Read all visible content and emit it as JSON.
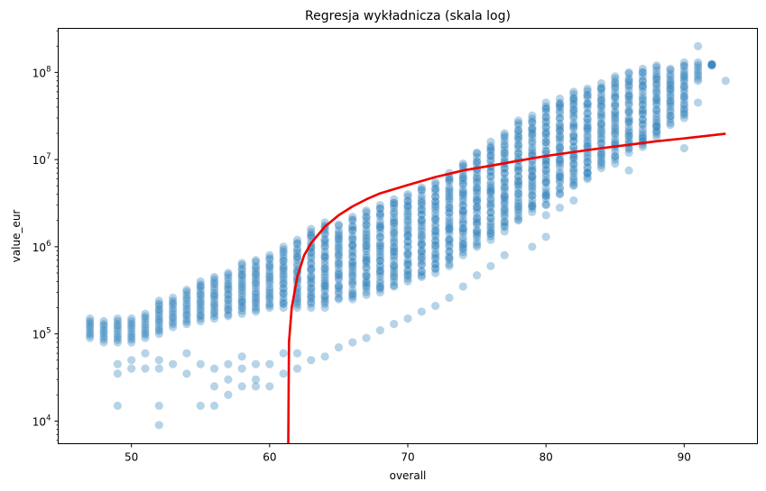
{
  "chart_data": {
    "type": "scatter",
    "title": "Regresja wykładnicza (skala log)",
    "xlabel": "overall",
    "ylabel": "value_eur",
    "x_range": [
      44.7,
      95.3
    ],
    "y_range": [
      5500,
      320000000
    ],
    "y_scale": "log",
    "grid": false,
    "x_ticks": [
      50,
      60,
      70,
      80,
      90
    ],
    "x_tick_labels": [
      "50",
      "60",
      "70",
      "80",
      "90"
    ],
    "y_ticks": [
      10000,
      100000,
      1000000,
      10000000,
      100000000
    ],
    "y_tick_labels": [
      {
        "base": "10",
        "exp": "4"
      },
      {
        "base": "10",
        "exp": "5"
      },
      {
        "base": "10",
        "exp": "6"
      },
      {
        "base": "10",
        "exp": "7"
      },
      {
        "base": "10",
        "exp": "8"
      }
    ],
    "colors": {
      "scatter": "#1f77b4",
      "fit": "#ee0000",
      "axis": "#000000"
    },
    "scatter_ranges": [
      [
        47,
        90000,
        150000
      ],
      [
        48,
        80000,
        140000
      ],
      [
        49,
        80000,
        150000
      ],
      [
        50,
        80000,
        150000
      ],
      [
        51,
        90000,
        170000
      ],
      [
        52,
        100000,
        240000
      ],
      [
        53,
        120000,
        260000
      ],
      [
        54,
        130000,
        320000
      ],
      [
        55,
        140000,
        400000
      ],
      [
        56,
        150000,
        450000
      ],
      [
        57,
        160000,
        500000
      ],
      [
        58,
        170000,
        650000
      ],
      [
        59,
        180000,
        700000
      ],
      [
        60,
        200000,
        800000
      ],
      [
        61,
        200000,
        1000000
      ],
      [
        62,
        200000,
        1200000
      ],
      [
        63,
        200000,
        1600000
      ],
      [
        64,
        200000,
        1900000
      ],
      [
        65,
        250000,
        1800000
      ],
      [
        66,
        250000,
        2200000
      ],
      [
        67,
        280000,
        2600000
      ],
      [
        68,
        300000,
        3000000
      ],
      [
        69,
        350000,
        3500000
      ],
      [
        70,
        400000,
        4000000
      ],
      [
        71,
        450000,
        4800000
      ],
      [
        72,
        500000,
        5500000
      ],
      [
        73,
        600000,
        7000000
      ],
      [
        74,
        800000,
        9000000
      ],
      [
        75,
        1000000,
        12000000
      ],
      [
        76,
        1200000,
        16000000
      ],
      [
        77,
        1500000,
        20000000
      ],
      [
        78,
        2000000,
        28000000
      ],
      [
        79,
        2500000,
        32000000
      ],
      [
        80,
        3000000,
        45000000
      ],
      [
        81,
        4000000,
        50000000
      ],
      [
        82,
        5000000,
        60000000
      ],
      [
        83,
        6000000,
        65000000
      ],
      [
        84,
        8000000,
        75000000
      ],
      [
        85,
        10000000,
        90000000
      ],
      [
        86,
        12000000,
        100000000
      ],
      [
        87,
        14000000,
        110000000
      ],
      [
        88,
        18000000,
        120000000
      ],
      [
        89,
        25000000,
        110000000
      ],
      [
        90,
        30000000,
        130000000
      ],
      [
        91,
        80000000,
        130000000
      ],
      [
        92,
        120000000,
        125000000
      ]
    ],
    "scatter_extra_points": [
      [
        49,
        15000
      ],
      [
        49,
        35000
      ],
      [
        49,
        45000
      ],
      [
        50,
        40000
      ],
      [
        50,
        50000
      ],
      [
        51,
        40000
      ],
      [
        51,
        60000
      ],
      [
        52,
        9000
      ],
      [
        52,
        15000
      ],
      [
        52,
        40000
      ],
      [
        52,
        50000
      ],
      [
        53,
        45000
      ],
      [
        54,
        35000
      ],
      [
        54,
        60000
      ],
      [
        55,
        15000
      ],
      [
        55,
        45000
      ],
      [
        56,
        15000
      ],
      [
        56,
        25000
      ],
      [
        56,
        40000
      ],
      [
        57,
        20000
      ],
      [
        57,
        30000
      ],
      [
        57,
        45000
      ],
      [
        58,
        25000
      ],
      [
        58,
        40000
      ],
      [
        58,
        55000
      ],
      [
        59,
        25000
      ],
      [
        59,
        30000
      ],
      [
        59,
        45000
      ],
      [
        60,
        25000
      ],
      [
        60,
        45000
      ],
      [
        61,
        35000
      ],
      [
        61,
        60000
      ],
      [
        62,
        40000
      ],
      [
        62,
        60000
      ],
      [
        63,
        50000
      ],
      [
        64,
        55000
      ],
      [
        65,
        70000
      ],
      [
        66,
        80000
      ],
      [
        67,
        90000
      ],
      [
        68,
        110000
      ],
      [
        69,
        130000
      ],
      [
        70,
        150000
      ],
      [
        71,
        180000
      ],
      [
        72,
        210000
      ],
      [
        73,
        260000
      ],
      [
        74,
        350000
      ],
      [
        75,
        470000
      ],
      [
        76,
        600000
      ],
      [
        77,
        800000
      ],
      [
        79,
        1000000
      ],
      [
        80,
        1300000
      ],
      [
        80,
        2300000
      ],
      [
        81,
        2800000
      ],
      [
        82,
        3400000
      ],
      [
        83,
        7000000
      ],
      [
        85,
        9000000
      ],
      [
        86,
        7500000
      ],
      [
        87,
        16000000
      ],
      [
        88,
        24000000
      ],
      [
        89,
        65000000
      ],
      [
        90,
        13500000
      ],
      [
        91,
        45000000
      ],
      [
        91,
        200000000
      ],
      [
        93,
        80000000
      ]
    ],
    "fit_curve": [
      [
        61.35,
        5500
      ],
      [
        61.4,
        80000
      ],
      [
        61.6,
        200000
      ],
      [
        62,
        450000
      ],
      [
        62.5,
        800000
      ],
      [
        63,
        1100000
      ],
      [
        64,
        1700000
      ],
      [
        65,
        2300000
      ],
      [
        66,
        2900000
      ],
      [
        67,
        3500000
      ],
      [
        68,
        4100000
      ],
      [
        70,
        5100000
      ],
      [
        72,
        6300000
      ],
      [
        74,
        7500000
      ],
      [
        76,
        8500000
      ],
      [
        78,
        9700000
      ],
      [
        80,
        11000000
      ],
      [
        82,
        12200000
      ],
      [
        84,
        13500000
      ],
      [
        86,
        14800000
      ],
      [
        88,
        16200000
      ],
      [
        90,
        17500000
      ],
      [
        93,
        19800000
      ]
    ]
  }
}
